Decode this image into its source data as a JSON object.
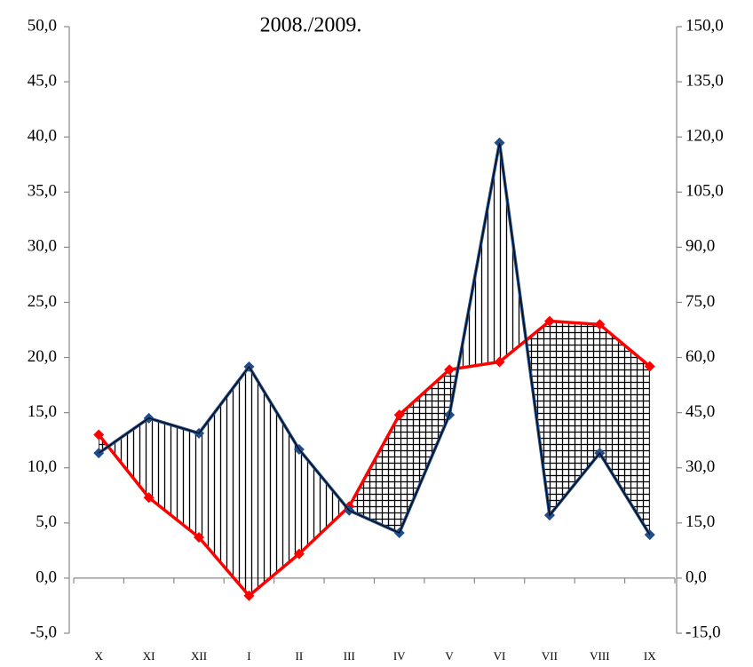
{
  "chart_data": {
    "type": "line",
    "title": "2008./2009.",
    "categories": [
      "X",
      "XI",
      "XII",
      "I",
      "II",
      "III",
      "IV",
      "V",
      "VI",
      "VII",
      "VIII",
      "IX"
    ],
    "series": [
      {
        "color": "#ff0000",
        "values": [
          13.0,
          7.3,
          3.7,
          -1.6,
          2.2,
          6.5,
          14.8,
          18.9,
          19.6,
          23.3,
          23.0,
          19.2
        ]
      },
      {
        "color": "#1f4e8c",
        "axis": "y2",
        "values": [
          34.0,
          43.5,
          39.4,
          57.5,
          35.0,
          18.4,
          12.3,
          44.4,
          118.4,
          17.1,
          34.0,
          11.8
        ]
      }
    ],
    "ylim": [
      -5,
      50
    ],
    "yticks": [
      {
        "value": -5,
        "label": "-5,0"
      },
      {
        "value": 0,
        "label": "0,0"
      },
      {
        "value": 5,
        "label": "5,0"
      },
      {
        "value": 10,
        "label": "10,0"
      },
      {
        "value": 15,
        "label": "15,0"
      },
      {
        "value": 20,
        "label": "20,0"
      },
      {
        "value": 25,
        "label": "25,0"
      },
      {
        "value": 30,
        "label": "30,0"
      },
      {
        "value": 35,
        "label": "35,0"
      },
      {
        "value": 40,
        "label": "40,0"
      },
      {
        "value": 45,
        "label": "45,0"
      },
      {
        "value": 50,
        "label": "50,0"
      }
    ],
    "y2lim": [
      -15,
      150
    ],
    "y2ticks": [
      {
        "value": -15,
        "label": "-15,0"
      },
      {
        "value": 0,
        "label": "0,0"
      },
      {
        "value": 15,
        "label": "15,0"
      },
      {
        "value": 30,
        "label": "30,0"
      },
      {
        "value": 45,
        "label": "45,0"
      },
      {
        "value": 60,
        "label": "60,0"
      },
      {
        "value": 75,
        "label": "75,0"
      },
      {
        "value": 90,
        "label": "90,0"
      },
      {
        "value": 105,
        "label": "105,0"
      },
      {
        "value": 120,
        "label": "120,0"
      },
      {
        "value": 135,
        "label": "135,0"
      },
      {
        "value": 150,
        "label": "150,0"
      }
    ]
  }
}
